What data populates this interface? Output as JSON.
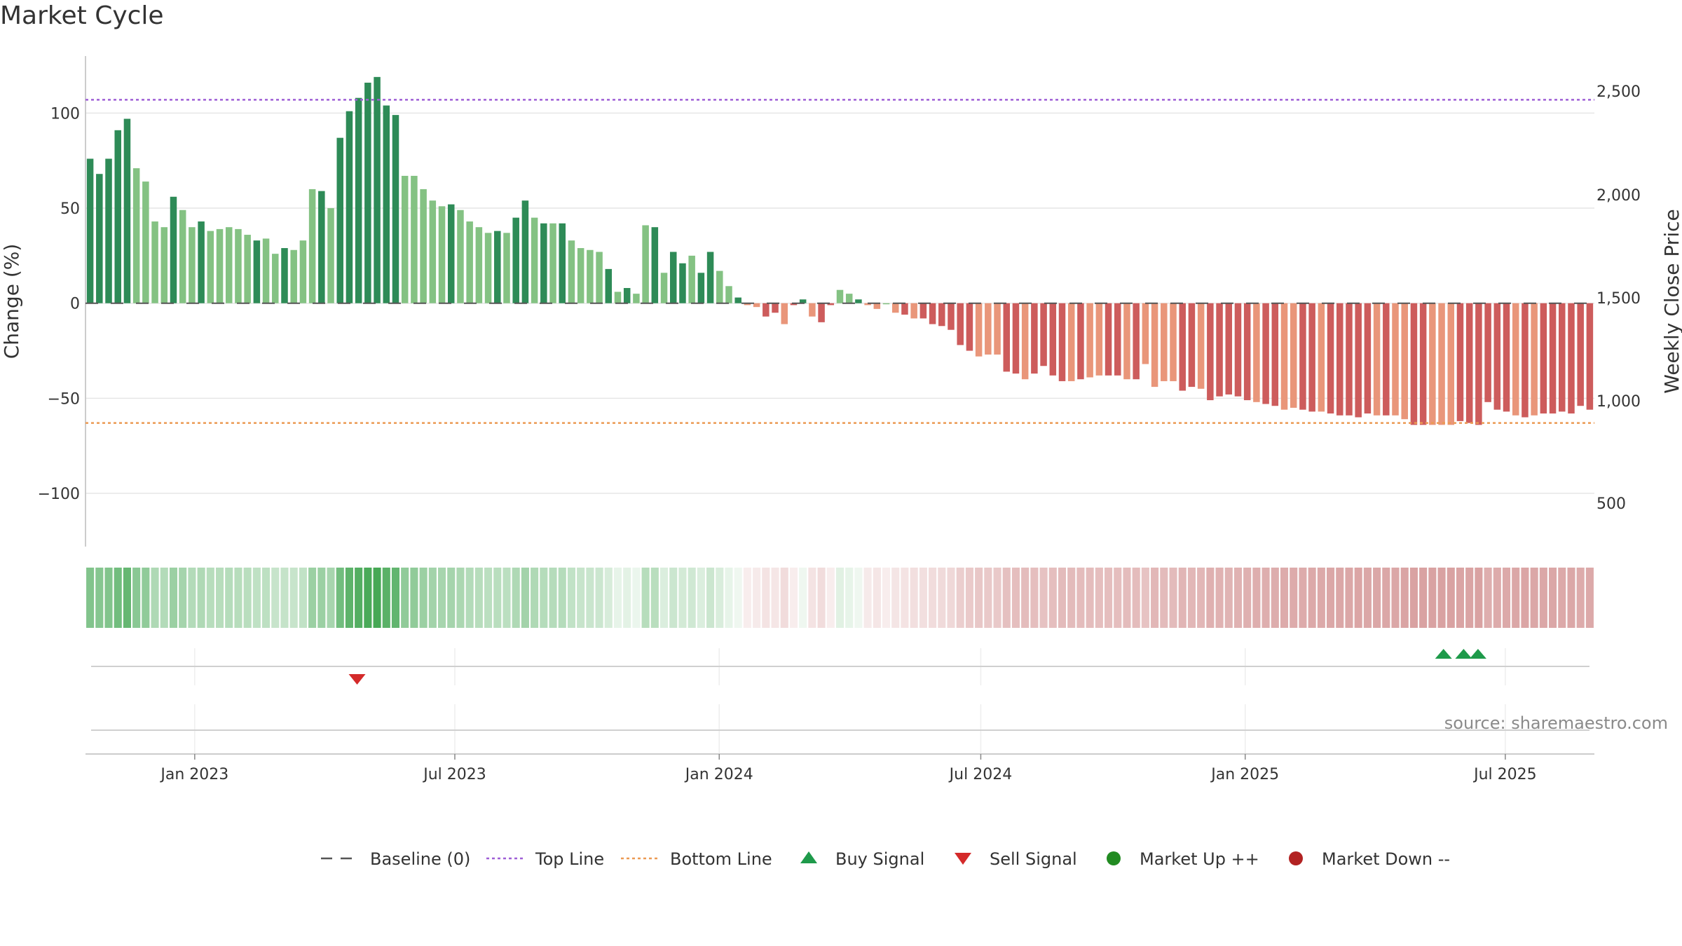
{
  "title": "Market Cycle",
  "source": "source: sharemaestro.com",
  "colors": {
    "up_strong": "#2e8b57",
    "up_weak": "#84c283",
    "down_strong": "#cd5c5c",
    "down_weak": "#e9967a",
    "top_line": "#9f5fd6",
    "bottom_line": "#ec9a53",
    "baseline": "#555555",
    "buy": "#1e9a4a",
    "sell": "#d42a2a",
    "market_up": "#228b22",
    "market_down": "#b22222"
  },
  "chart_data": {
    "type": "bar",
    "y_left": {
      "label": "Change (%)",
      "range": [
        -128,
        130
      ],
      "ticks": [
        100,
        50,
        0,
        -50,
        -100
      ],
      "tick_labels": [
        "100",
        "50",
        "0",
        "−50",
        "−100"
      ]
    },
    "y_right": {
      "label": "Weekly Close Price",
      "ticks": [
        2500,
        2000,
        1500,
        1000,
        500
      ],
      "tick_labels": [
        "2,500",
        "2,000",
        "1,500",
        "1,000",
        "500"
      ]
    },
    "x_axis": {
      "start": "2022-10-17",
      "end": "2025-09-01",
      "ticks": [
        "2023-01-01",
        "2023-07-01",
        "2024-01-01",
        "2024-07-01",
        "2025-01-01",
        "2025-07-01"
      ],
      "tick_labels": [
        "Jan 2023",
        "Jul 2023",
        "Jan 2024",
        "Jul 2024",
        "Jan 2025",
        "Jul 2025"
      ]
    },
    "reference_lines": {
      "baseline": 0,
      "top_line": 107,
      "bottom_line": -63
    },
    "series": [
      {
        "name": "Change (%)",
        "interval": "weekly",
        "values": [
          76,
          68,
          76,
          91,
          97,
          71,
          64,
          43,
          40,
          56,
          49,
          40,
          43,
          38,
          39,
          40,
          39,
          36,
          33,
          34,
          26,
          29,
          28,
          33,
          60,
          59,
          50,
          87,
          101,
          108,
          116,
          119,
          104,
          99,
          67,
          67,
          60,
          54,
          51,
          52,
          49,
          43,
          40,
          37,
          38,
          37,
          45,
          54,
          45,
          42,
          42,
          42,
          33,
          29,
          28,
          27,
          18,
          6,
          8,
          5,
          41,
          40,
          16,
          27,
          21,
          25,
          16,
          27,
          17,
          9,
          3,
          -1,
          -2,
          -7,
          -5,
          -11,
          -1,
          2,
          -7,
          -10,
          -1,
          7,
          5,
          2,
          -1,
          -3,
          0,
          -5,
          -6,
          -8,
          -8,
          -11,
          -12,
          -14,
          -22,
          -25,
          -28,
          -27,
          -27,
          -36,
          -37,
          -40,
          -37,
          -33,
          -38,
          -41,
          -41,
          -40,
          -39,
          -38,
          -38,
          -38,
          -40,
          -40,
          -32,
          -44,
          -41,
          -41,
          -46,
          -44,
          -45,
          -51,
          -49,
          -48,
          -49,
          -51,
          -52,
          -53,
          -54,
          -56,
          -55,
          -56,
          -57,
          -57,
          -58,
          -59,
          -59,
          -60,
          -58,
          -59,
          -59,
          -59,
          -61,
          -64,
          -64,
          -64,
          -64,
          -64,
          -62,
          -63,
          -64,
          -52,
          -56,
          -57,
          -59,
          -60,
          -59,
          -58,
          -58,
          -57,
          -58,
          -54,
          -56
        ],
        "strength": "ssssswwwwswwswwwwwswwswwwswssssssswwwwwswwwwswsswswswwwwswswwswsswsswwswwsswsswsswwswwwwswsssssswwwsswsssswswwsswswwwwsswssssswsswwsswssssswswwsswwwsssssswswsssssswwwws"
      }
    ],
    "regime_strip": {
      "label": "",
      "values": [
        0.62,
        0.6,
        0.62,
        0.7,
        0.76,
        0.58,
        0.55,
        0.4,
        0.38,
        0.5,
        0.45,
        0.38,
        0.4,
        0.36,
        0.36,
        0.37,
        0.36,
        0.35,
        0.32,
        0.33,
        0.28,
        0.29,
        0.28,
        0.31,
        0.5,
        0.5,
        0.44,
        0.7,
        0.8,
        0.85,
        0.9,
        0.92,
        0.82,
        0.78,
        0.55,
        0.55,
        0.5,
        0.46,
        0.44,
        0.45,
        0.42,
        0.38,
        0.36,
        0.34,
        0.35,
        0.34,
        0.4,
        0.46,
        0.4,
        0.37,
        0.37,
        0.37,
        0.31,
        0.28,
        0.27,
        0.26,
        0.2,
        0.12,
        0.14,
        0.1,
        0.36,
        0.35,
        0.18,
        0.26,
        0.22,
        0.24,
        0.18,
        0.26,
        0.19,
        0.12,
        0.08,
        -0.1,
        -0.12,
        -0.16,
        -0.14,
        -0.2,
        -0.1,
        0.08,
        -0.16,
        -0.2,
        -0.1,
        0.15,
        0.12,
        0.08,
        -0.12,
        -0.14,
        -0.1,
        -0.15,
        -0.16,
        -0.18,
        -0.18,
        -0.2,
        -0.21,
        -0.22,
        -0.28,
        -0.3,
        -0.32,
        -0.31,
        -0.31,
        -0.36,
        -0.37,
        -0.38,
        -0.37,
        -0.35,
        -0.37,
        -0.39,
        -0.39,
        -0.38,
        -0.38,
        -0.37,
        -0.37,
        -0.37,
        -0.38,
        -0.38,
        -0.34,
        -0.41,
        -0.39,
        -0.39,
        -0.42,
        -0.41,
        -0.41,
        -0.45,
        -0.44,
        -0.43,
        -0.44,
        -0.45,
        -0.46,
        -0.46,
        -0.47,
        -0.48,
        -0.48,
        -0.48,
        -0.49,
        -0.49,
        -0.5,
        -0.5,
        -0.5,
        -0.51,
        -0.5,
        -0.5,
        -0.5,
        -0.5,
        -0.52,
        -0.53,
        -0.53,
        -0.53,
        -0.53,
        -0.53,
        -0.52,
        -0.52,
        -0.53,
        -0.46,
        -0.48,
        -0.49,
        -0.5,
        -0.51,
        -0.5,
        -0.5,
        -0.5,
        -0.49,
        -0.5,
        -0.48,
        -0.49
      ]
    },
    "signals": {
      "buy": [
        "2025-05-19",
        "2025-06-02",
        "2025-06-12"
      ],
      "sell": [
        "2023-04-24"
      ]
    },
    "legend": {
      "placement": "bottom",
      "items": [
        {
          "label": "Baseline (0)",
          "symbol": "dash",
          "color_key": "baseline"
        },
        {
          "label": "Top Line",
          "symbol": "dot-line",
          "color_key": "top_line"
        },
        {
          "label": "Bottom Line",
          "symbol": "dot-line",
          "color_key": "bottom_line"
        },
        {
          "label": "Buy Signal",
          "symbol": "triangle-up",
          "color_key": "buy"
        },
        {
          "label": "Sell Signal",
          "symbol": "triangle-down",
          "color_key": "sell"
        },
        {
          "label": "Market Up ++",
          "symbol": "circle",
          "color_key": "market_up"
        },
        {
          "label": "Market Down --",
          "symbol": "circle",
          "color_key": "market_down"
        }
      ]
    },
    "grid": true
  }
}
